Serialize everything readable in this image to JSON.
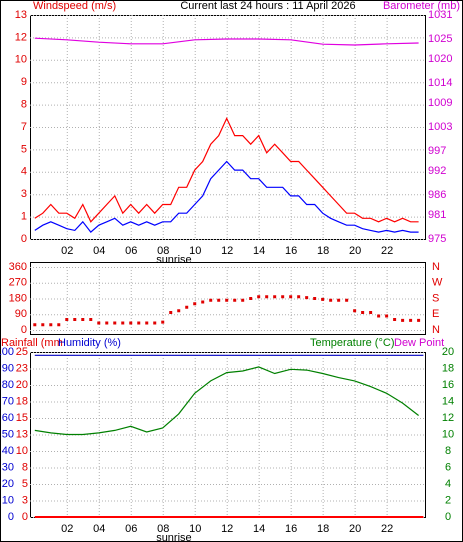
{
  "chart_data": [
    {
      "type": "line",
      "title": "Current last 24 hours : 11 April 2026",
      "y_label": "Windspeed (m/s)",
      "y2_label": "Barometer (mb)",
      "x": [
        0,
        0.5,
        1,
        1.5,
        2,
        2.5,
        3,
        3.5,
        4,
        4.5,
        5,
        5.5,
        6,
        6.5,
        7,
        7.5,
        8,
        8.5,
        9,
        9.5,
        10,
        10.5,
        11,
        11.5,
        12,
        12.5,
        13,
        13.5,
        14,
        14.5,
        15,
        15.5,
        16,
        16.5,
        17,
        17.5,
        18,
        18.5,
        19,
        19.5,
        20,
        20.5,
        21,
        21.5,
        22,
        22.5,
        23,
        23.5,
        24
      ],
      "xlim": [
        -0.3,
        24.4
      ],
      "xticks": [
        {
          "value": 2,
          "label": "02"
        },
        {
          "value": 4,
          "label": "04"
        },
        {
          "value": 6,
          "label": "06"
        },
        {
          "value": 8,
          "label": "08"
        },
        {
          "value": 10,
          "label": "10"
        },
        {
          "value": 12,
          "label": "12"
        },
        {
          "value": 14,
          "label": "14"
        },
        {
          "value": 16,
          "label": "16"
        },
        {
          "value": 18,
          "label": "18"
        },
        {
          "value": 20,
          "label": "20"
        },
        {
          "value": 22,
          "label": "22"
        }
      ],
      "ylim": [
        0,
        13
      ],
      "yticks": [
        0,
        {
          "value": 1.3,
          "label": "1"
        },
        {
          "value": 2.6,
          "label": "3"
        },
        {
          "value": 3.9,
          "label": "4"
        },
        {
          "value": 5.2,
          "label": "5"
        },
        {
          "value": 6.5,
          "label": "7"
        },
        {
          "value": 7.8,
          "label": "8"
        },
        {
          "value": 9.1,
          "label": "9"
        },
        {
          "value": 10.4,
          "label": "10"
        },
        {
          "value": 11.7,
          "label": "12"
        },
        13
      ],
      "y2lim": [
        975,
        1031
      ],
      "y2ticks": [
        975,
        981,
        986,
        992,
        997,
        1003,
        1009,
        1014,
        1020,
        1025,
        1031
      ],
      "annotations": [
        {
          "text": "sunrise",
          "x": 8.7
        }
      ],
      "grid": true,
      "series": [
        {
          "color": "#ff0000",
          "values": [
            1.2,
            1.5,
            2,
            1.5,
            1.5,
            1.2,
            2,
            1,
            1.5,
            2,
            2.5,
            1.5,
            2,
            1.5,
            2,
            1.5,
            2,
            2,
            3,
            3,
            4,
            4.5,
            5.5,
            6,
            7,
            6,
            6,
            5.5,
            6,
            5,
            5.5,
            5,
            4.5,
            4.5,
            4,
            3.5,
            3,
            2.5,
            2,
            1.5,
            1.5,
            1.2,
            1.2,
            1,
            1.2,
            1,
            1.2,
            1,
            1
          ]
        },
        {
          "color": "#0000ff",
          "values": [
            0.5,
            0.8,
            1,
            0.8,
            0.6,
            0.5,
            1,
            0.4,
            0.8,
            1,
            1.2,
            0.8,
            1,
            0.8,
            1,
            0.8,
            1,
            1,
            1.5,
            1.5,
            2,
            2.5,
            3.5,
            4,
            4.5,
            4,
            4,
            3.5,
            3.5,
            3,
            3,
            3,
            2.5,
            2.5,
            2,
            2,
            1.5,
            1.2,
            1,
            0.8,
            0.8,
            0.6,
            0.5,
            0.4,
            0.5,
            0.4,
            0.5,
            0.4,
            0.4
          ]
        },
        {
          "color": "#e000e0",
          "axis": "y2",
          "x": [
            0,
            2,
            4,
            6,
            8,
            10,
            12,
            14,
            16,
            18,
            20,
            22,
            24
          ],
          "values": [
            1025.2,
            1024.8,
            1024.2,
            1023.8,
            1023.8,
            1024.8,
            1025,
            1025,
            1024.8,
            1023.7,
            1023.5,
            1023.8,
            1024
          ]
        }
      ]
    },
    {
      "type": "scatter",
      "x": [
        0,
        0.5,
        1,
        1.5,
        2,
        2.5,
        3,
        3.5,
        4,
        4.5,
        5,
        5.5,
        6,
        6.5,
        7,
        7.5,
        8,
        8.5,
        9,
        9.5,
        10,
        10.5,
        11,
        11.5,
        12,
        12.5,
        13,
        13.5,
        14,
        14.5,
        15,
        15.5,
        16,
        16.5,
        17,
        17.5,
        18,
        18.5,
        19,
        19.5,
        20,
        20.5,
        21,
        21.5,
        22,
        22.5,
        23,
        23.5,
        24
      ],
      "values": [
        30,
        30,
        30,
        30,
        60,
        60,
        60,
        60,
        40,
        40,
        40,
        40,
        40,
        40,
        40,
        40,
        45,
        100,
        110,
        130,
        150,
        160,
        170,
        170,
        170,
        170,
        170,
        180,
        190,
        190,
        190,
        190,
        190,
        190,
        185,
        180,
        175,
        170,
        170,
        170,
        110,
        100,
        100,
        80,
        80,
        60,
        55,
        55,
        55
      ],
      "color": "#e00000",
      "xlim": [
        -0.3,
        24.4
      ],
      "xticks": [
        2,
        4,
        6,
        8,
        10,
        12,
        14,
        16,
        18,
        20,
        22
      ],
      "xtick_labels": false,
      "ylim": [
        0,
        360
      ],
      "yticks": [
        0,
        90,
        180,
        270,
        360
      ],
      "y2lim": [
        0,
        360
      ],
      "y2ticks": [
        {
          "value": 0,
          "label": "N"
        },
        {
          "value": 90,
          "label": "E"
        },
        {
          "value": 180,
          "label": "S"
        },
        {
          "value": 270,
          "label": "W"
        },
        {
          "value": 360,
          "label": "N"
        }
      ],
      "grid": true
    },
    {
      "type": "line",
      "y_label": "Rainfall (mm",
      "y3_label": "Humidity (%)",
      "y2_label": "Temperature (°C)",
      "dew_label": "Dew Point",
      "xlim": [
        -0.3,
        24.4
      ],
      "xticks": [
        {
          "value": 2,
          "label": "02"
        },
        {
          "value": 4,
          "label": "04"
        },
        {
          "value": 6,
          "label": "06"
        },
        {
          "value": 8,
          "label": "08"
        },
        {
          "value": 10,
          "label": "10"
        },
        {
          "value": 12,
          "label": "12"
        },
        {
          "value": 14,
          "label": "14"
        },
        {
          "value": 16,
          "label": "16"
        },
        {
          "value": 18,
          "label": "18"
        },
        {
          "value": 20,
          "label": "20"
        },
        {
          "value": 22,
          "label": "22"
        }
      ],
      "ylim": [
        0,
        25
      ],
      "yticks": [
        0,
        {
          "value": 2.5,
          "label": "3"
        },
        5,
        {
          "value": 7.5,
          "label": "8"
        },
        10,
        {
          "value": 12.5,
          "label": "13"
        },
        15,
        {
          "value": 17.5,
          "label": "18"
        },
        20,
        {
          "value": 22.5,
          "label": "23"
        },
        25
      ],
      "y3lim": [
        0,
        100
      ],
      "y3ticks": [
        0,
        10,
        20,
        30,
        40,
        50,
        60,
        70,
        80,
        90,
        100
      ],
      "y2lim": [
        0,
        20
      ],
      "y2ticks": [
        0,
        2,
        4,
        6,
        8,
        10,
        12,
        14,
        16,
        18,
        20
      ],
      "annotations": [
        {
          "text": "sunrise",
          "x": 8.7
        }
      ],
      "grid": true,
      "series": [
        {
          "color": "#0000c0",
          "axis": "y3",
          "x": [
            0,
            24.3
          ],
          "values": [
            98,
            98
          ]
        },
        {
          "color": "#ff0000",
          "axis": "y",
          "x": [
            0,
            24.3
          ],
          "values": [
            0,
            0
          ]
        },
        {
          "color": "#008000",
          "axis": "y2",
          "x": [
            0,
            1,
            2,
            3,
            4,
            5,
            6,
            7,
            8,
            9,
            10,
            11,
            12,
            13,
            14,
            15,
            16,
            17,
            18,
            19,
            20,
            21,
            22,
            23,
            24
          ],
          "values": [
            10.5,
            10.2,
            10,
            10,
            10.2,
            10.5,
            11,
            10.3,
            10.8,
            12.5,
            15,
            16.5,
            17.5,
            17.7,
            18.2,
            17.4,
            17.9,
            17.8,
            17.4,
            16.9,
            16.5,
            15.8,
            15,
            13.8,
            12.3
          ]
        }
      ]
    }
  ]
}
